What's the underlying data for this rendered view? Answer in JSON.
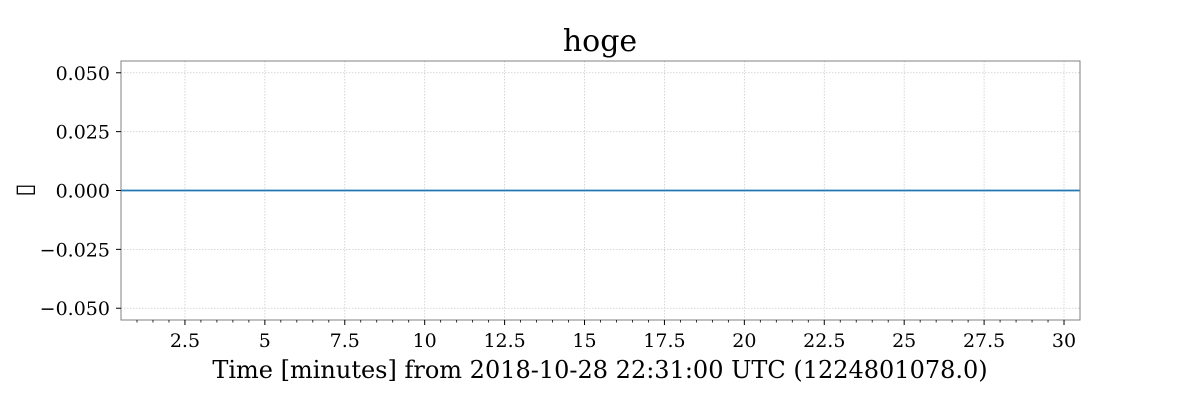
{
  "chart_data": {
    "type": "line",
    "title": "hoge",
    "xlabel": "Time [minutes] from 2018-10-28 22:31:00 UTC (1224801078.0)",
    "ylabel": "▯",
    "xlim": [
      0.5,
      30.5
    ],
    "ylim": [
      -0.055,
      0.055
    ],
    "x_ticks": [
      2.5,
      5,
      7.5,
      10,
      12.5,
      15,
      17.5,
      20,
      22.5,
      25,
      27.5,
      30
    ],
    "x_tick_labels": [
      "2.5",
      "5",
      "7.5",
      "10",
      "12.5",
      "15",
      "17.5",
      "20",
      "22.5",
      "25",
      "27.5",
      "30"
    ],
    "y_ticks": [
      0.05,
      0.025,
      0.0,
      -0.025,
      -0.05
    ],
    "y_tick_labels": [
      "0.050",
      "0.025",
      "0.000",
      "−0.025",
      "−0.050"
    ],
    "grid": true,
    "series": [
      {
        "x": [
          0.5,
          30.5
        ],
        "y": [
          0.0,
          0.0
        ],
        "color": "#1f77b4"
      }
    ],
    "colors": {
      "line": "#1f77b4",
      "grid": "#cccccc",
      "frame": "#808080"
    }
  }
}
